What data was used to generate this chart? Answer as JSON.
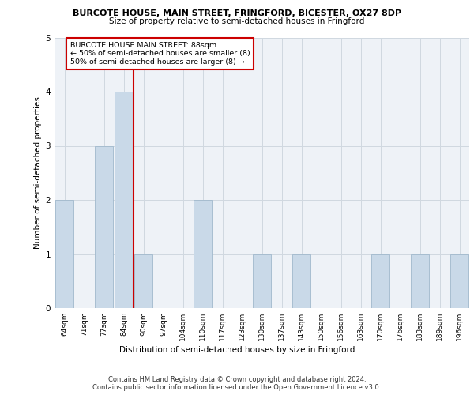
{
  "title": "BURCOTE HOUSE, MAIN STREET, FRINGFORD, BICESTER, OX27 8DP",
  "subtitle": "Size of property relative to semi-detached houses in Fringford",
  "xlabel": "Distribution of semi-detached houses by size in Fringford",
  "ylabel": "Number of semi-detached properties",
  "categories": [
    "64sqm",
    "71sqm",
    "77sqm",
    "84sqm",
    "90sqm",
    "97sqm",
    "104sqm",
    "110sqm",
    "117sqm",
    "123sqm",
    "130sqm",
    "137sqm",
    "143sqm",
    "150sqm",
    "156sqm",
    "163sqm",
    "170sqm",
    "176sqm",
    "183sqm",
    "189sqm",
    "196sqm"
  ],
  "values": [
    2,
    0,
    3,
    4,
    1,
    0,
    0,
    2,
    0,
    0,
    1,
    0,
    1,
    0,
    0,
    0,
    1,
    0,
    1,
    0,
    1
  ],
  "bar_color": "#c9d9e8",
  "bar_edge_color": "#a0b8cc",
  "vline_x": 3.5,
  "annotation_title": "BURCOTE HOUSE MAIN STREET: 88sqm",
  "annotation_line1": "← 50% of semi-detached houses are smaller (8)",
  "annotation_line2": "50% of semi-detached houses are larger (8) →",
  "annotation_box_color": "#ffffff",
  "annotation_box_edge": "#cc0000",
  "vline_color": "#cc0000",
  "ylim": [
    0,
    5
  ],
  "yticks": [
    0,
    1,
    2,
    3,
    4,
    5
  ],
  "grid_color": "#d0d8e0",
  "bg_color": "#eef2f7",
  "footer_line1": "Contains HM Land Registry data © Crown copyright and database right 2024.",
  "footer_line2": "Contains public sector information licensed under the Open Government Licence v3.0."
}
